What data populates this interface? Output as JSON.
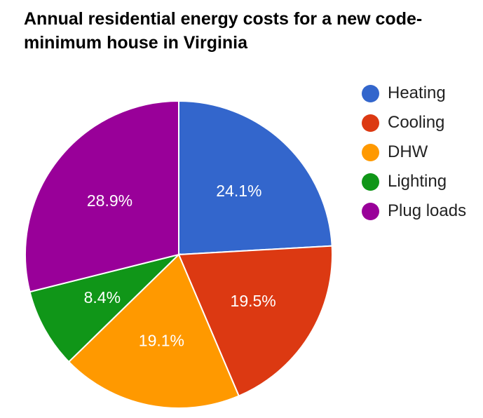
{
  "chart_data": {
    "type": "pie",
    "title_lines": [
      "Annual residential energy costs for a new code-",
      "minimum house in Virginia"
    ],
    "categories": [
      "Heating",
      "Cooling",
      "DHW",
      "Lighting",
      "Plug loads"
    ],
    "values": [
      24.1,
      19.5,
      19.1,
      8.4,
      28.9
    ],
    "data_labels": [
      "24.1%",
      "19.5%",
      "19.1%",
      "8.4%",
      "28.9%"
    ],
    "colors": [
      "#3366cc",
      "#dc3912",
      "#ff9900",
      "#109618",
      "#990099"
    ],
    "legend_position": "right"
  }
}
